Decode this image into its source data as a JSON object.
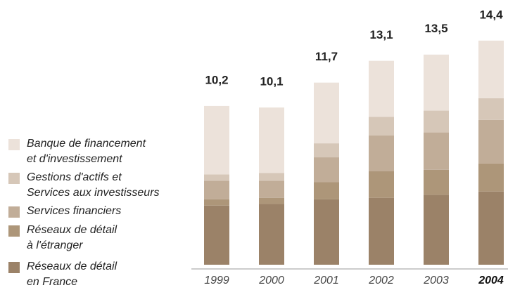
{
  "chart_data": {
    "type": "stacked-bar",
    "categories": [
      "1999",
      "2000",
      "2001",
      "2002",
      "2003",
      "2004"
    ],
    "series": [
      {
        "name": "Réseaux de détail\nen France",
        "color": "#9b8268",
        "values": [
          3.8,
          3.9,
          4.2,
          4.3,
          4.5,
          4.7
        ]
      },
      {
        "name": "Réseaux de détail\nà l'étranger",
        "color": "#ad9679",
        "values": [
          0.4,
          0.4,
          1.1,
          1.7,
          1.6,
          1.8
        ]
      },
      {
        "name": "Services financiers",
        "color": "#c1ad98",
        "values": [
          1.2,
          1.1,
          1.6,
          2.3,
          2.4,
          2.8
        ]
      },
      {
        "name": "Gestions d'actifs et\nServices aux investisseurs",
        "color": "#d6c7b8",
        "values": [
          0.4,
          0.5,
          0.9,
          1.2,
          1.4,
          1.4
        ]
      },
      {
        "name": "Banque de financement\net d'investissement",
        "color": "#ece2da",
        "values": [
          4.4,
          4.2,
          3.9,
          3.6,
          3.6,
          3.7
        ]
      }
    ],
    "totals": {
      "values": [
        10.2,
        10.1,
        11.7,
        13.1,
        13.5,
        14.4
      ],
      "value_labels": [
        "10,2",
        "10,1",
        "11,7",
        "13,1",
        "13,5",
        "14,4"
      ]
    },
    "ylim": [
      0,
      15.7
    ]
  }
}
